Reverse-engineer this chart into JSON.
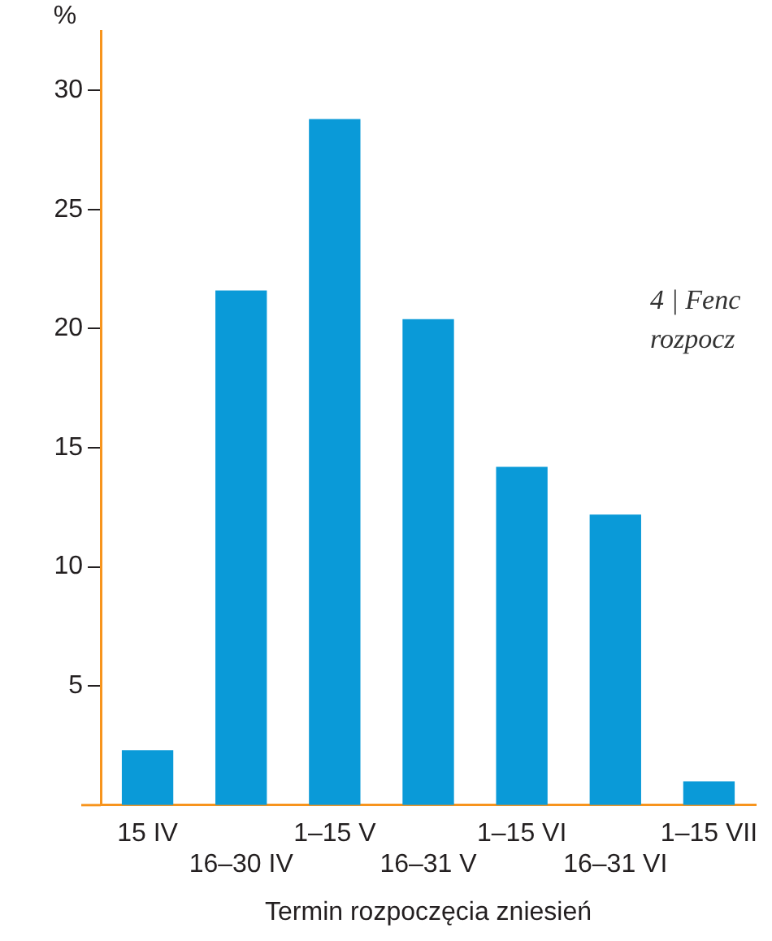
{
  "chart_data": {
    "type": "bar",
    "xlabel": "Termin rozpoczęcia zniesień",
    "ylabel": "%",
    "categories": [
      "15 IV",
      "16–30 IV",
      "1–15 V",
      "16–31 V",
      "1–15 VI",
      "16–31 VI",
      "1–15 VII"
    ],
    "values": [
      2.3,
      21.6,
      28.8,
      20.4,
      14.2,
      12.2,
      1.0
    ],
    "color": "#0a9ad8",
    "ylim": [
      0,
      32.5
    ],
    "yticks": [
      5,
      10,
      15,
      20,
      25,
      30
    ],
    "grid": false,
    "legend": false,
    "annotations": [
      "4 | Fenc",
      "rozpocz"
    ]
  }
}
